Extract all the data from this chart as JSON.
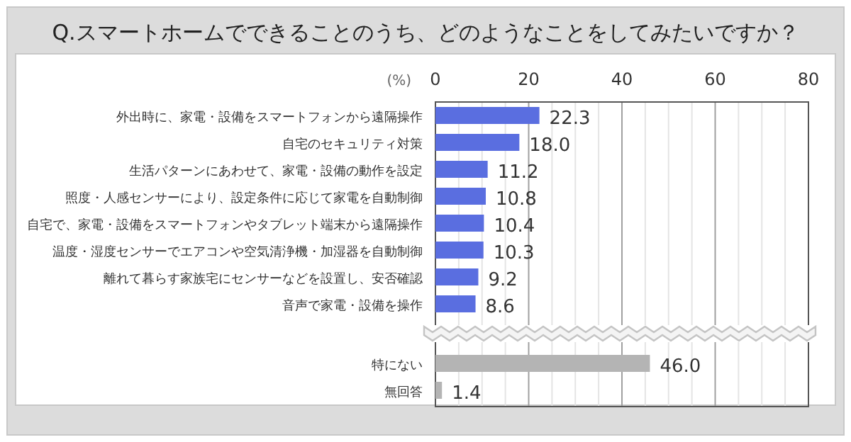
{
  "chart_data": {
    "type": "bar",
    "orientation": "horizontal",
    "title": "Q.スマートホームでできることのうち、どのようなことをしてみたいですか？",
    "xlabel": "(%)",
    "categories": [
      "外出時に、家電・設備をスマートフォンから遠隔操作",
      "自宅のセキュリティ対策",
      "生活パターンにあわせて、家電・設備の動作を設定",
      "照度・人感センサーにより、設定条件に応じて家電を自動制御",
      "自宅で、家電・設備をスマートフォンやタブレット端末から遠隔操作",
      "温度・湿度センサーでエアコンや空気清浄機・加湿器を自動制御",
      "離れて暮らす家族宅にセンサーなどを設置し、安否確認",
      "音声で家電・設備を操作",
      "特にない",
      "無回答"
    ],
    "values": [
      22.3,
      18.0,
      11.2,
      10.8,
      10.4,
      10.3,
      9.2,
      8.6,
      46.0,
      1.4
    ],
    "value_labels": [
      "22.3",
      "18.0",
      "11.2",
      "10.8",
      "10.4",
      "10.3",
      "9.2",
      "8.6",
      "46.0",
      "1.4"
    ],
    "colors": [
      "#5a6ee0",
      "#5a6ee0",
      "#5a6ee0",
      "#5a6ee0",
      "#5a6ee0",
      "#5a6ee0",
      "#5a6ee0",
      "#5a6ee0",
      "#b4b4b4",
      "#b4b4b4"
    ],
    "xlim": [
      0,
      80
    ],
    "xticks": [
      0,
      {
        "value": 5,
        "label": null
      },
      {
        "value": 10,
        "label": null
      },
      {
        "value": 15,
        "label": null
      },
      20,
      {
        "value": 25,
        "label": null
      },
      {
        "value": 30,
        "label": null
      },
      {
        "value": 35,
        "label": null
      },
      40,
      {
        "value": 45,
        "label": null
      },
      {
        "value": 50,
        "label": null
      },
      {
        "value": 55,
        "label": null
      },
      60,
      {
        "value": 65,
        "label": null
      },
      {
        "value": 70,
        "label": null
      },
      {
        "value": 75,
        "label": null
      },
      80
    ],
    "grid": "x"
  }
}
